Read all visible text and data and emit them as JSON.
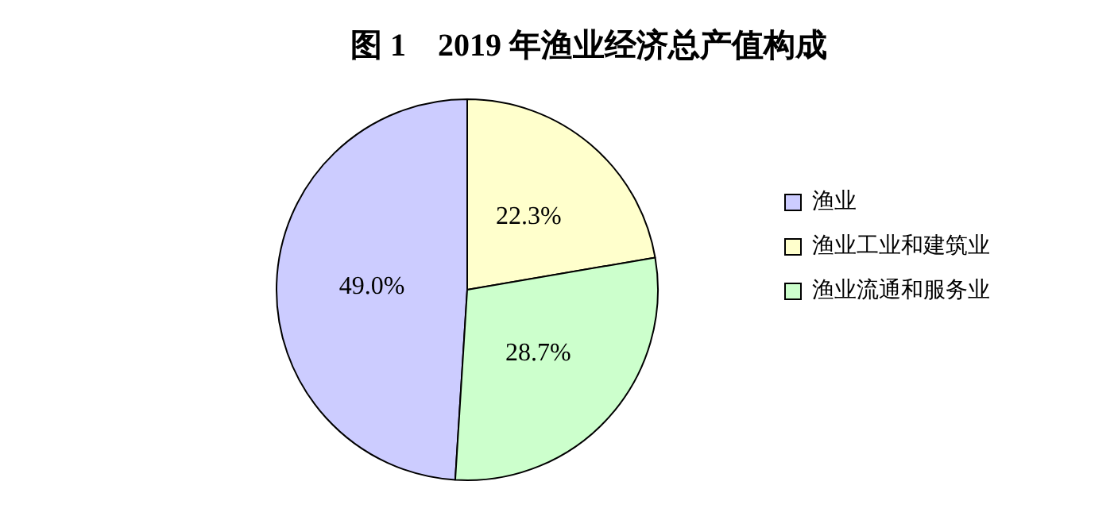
{
  "chart_data": {
    "type": "pie",
    "title": "图 1　2019 年渔业经济总产值构成",
    "categories": [
      "渔业",
      "渔业工业和建筑业",
      "渔业流通和服务业"
    ],
    "values": [
      49.0,
      22.3,
      28.7
    ],
    "value_labels": [
      "49.0%",
      "22.3%",
      "28.7%"
    ],
    "colors": [
      "#ccccff",
      "#ffffcc",
      "#ccffcc"
    ],
    "legend": "right"
  }
}
